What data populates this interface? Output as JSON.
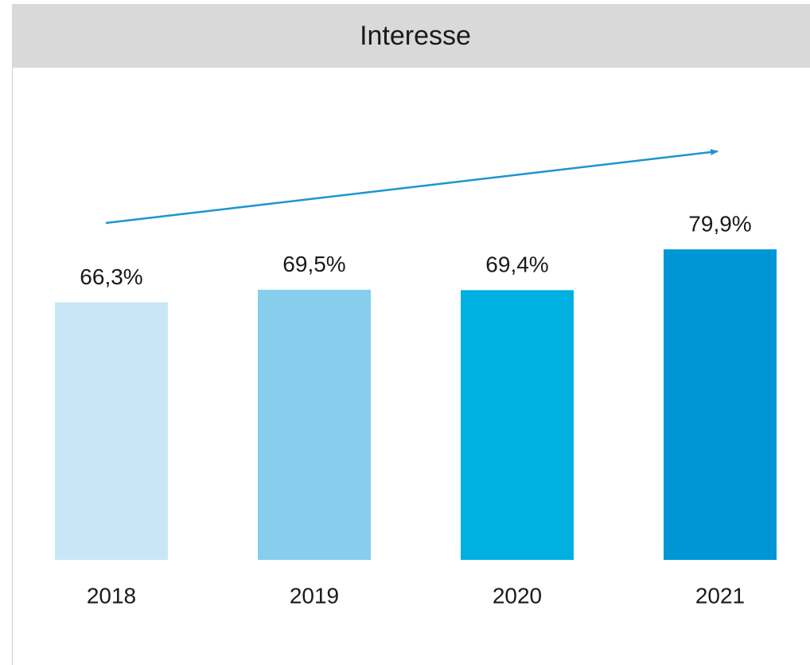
{
  "chart_data": {
    "type": "bar",
    "title": "Interesse",
    "categories": [
      "2018",
      "2019",
      "2020",
      "2021"
    ],
    "values": [
      66.3,
      69.5,
      69.4,
      79.9
    ],
    "value_labels": [
      "66,3%",
      "69,5%",
      "69,4%",
      "79,9%"
    ],
    "colors": [
      "#c9e6f6",
      "#87ceec",
      "#00b0e0",
      "#0096d6"
    ],
    "ylim": [
      0,
      100
    ]
  }
}
